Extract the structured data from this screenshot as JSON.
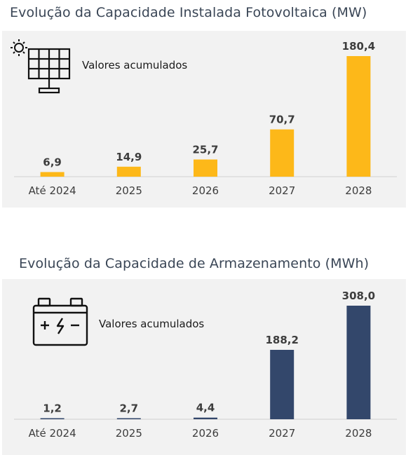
{
  "colors": {
    "solar": "#fdb819",
    "storage": "#33476b",
    "panel": "#f2f2f2",
    "title": "#3a4656"
  },
  "chart_data": [
    {
      "type": "bar",
      "title": "Evolução da Capacidade Instalada Fotovoltaica (MW)",
      "annotation": "Valores acumulados",
      "icon": "solar-panel-icon",
      "categories": [
        "Até 2024",
        "2025",
        "2026",
        "2027",
        "2028"
      ],
      "values": [
        6.9,
        14.9,
        25.7,
        70.7,
        180.4
      ],
      "data_labels": [
        "6,9",
        "14,9",
        "25,7",
        "70,7",
        "180,4"
      ],
      "ylim": [
        0,
        180.4
      ],
      "grid": false,
      "color": "#fdb819"
    },
    {
      "type": "bar",
      "title": "Evolução da Capacidade de Armazenamento (MWh)",
      "annotation": "Valores acumulados",
      "icon": "battery-icon",
      "categories": [
        "Até 2024",
        "2025",
        "2026",
        "2027",
        "2028"
      ],
      "values": [
        1.2,
        2.7,
        4.4,
        188.2,
        308.0
      ],
      "data_labels": [
        "1,2",
        "2,7",
        "4,4",
        "188,2",
        "308,0"
      ],
      "ylim": [
        0,
        308.0
      ],
      "grid": false,
      "color": "#33476b"
    }
  ]
}
